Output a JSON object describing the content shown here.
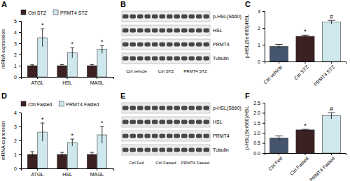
{
  "chart_data": [
    {
      "type": "bar",
      "title": "A",
      "y_label": "mRNA expression",
      "categories": [
        "ATGL",
        "HSL",
        "MAGL"
      ],
      "series": [
        {
          "name": "Ctrl STZ",
          "color": "#3b2121",
          "values": [
            1,
            1,
            1
          ],
          "errors": [
            0.08,
            0.1,
            0.1
          ]
        },
        {
          "name": "PRMT4 STZ",
          "color": "#cfe8ed",
          "values": [
            3.5,
            2.15,
            2.45
          ],
          "errors": [
            0.8,
            0.45,
            0.35
          ],
          "annotations": [
            "*",
            "*",
            "*"
          ]
        }
      ],
      "ylim": [
        0,
        5
      ],
      "yticks": [
        0,
        1,
        2,
        3,
        4,
        5
      ],
      "legend": "top"
    },
    {
      "type": "blot",
      "title": "B",
      "rows": [
        "p-HSL(S660)",
        "HSL",
        "PRMT4",
        "Tubulin"
      ],
      "lanes": [
        "Ctrl vehicle",
        "Ctrl STZ",
        "PRMT4 STZ"
      ]
    },
    {
      "type": "bar",
      "title": "C",
      "y_label": "p-HSL(Ser660)/HSL",
      "categories": [
        "Ctrl vehicle",
        "Ctrl STZ",
        "PRMT4 STZ"
      ],
      "values": [
        0.9,
        1.5,
        2.35
      ],
      "errors": [
        0.12,
        0.07,
        0.1
      ],
      "annotations": [
        null,
        "*",
        "#"
      ],
      "colors": [
        "#45556e",
        "#3b2121",
        "#cfe8ed"
      ],
      "ylim": [
        0,
        3
      ],
      "yticks": [
        0,
        1,
        2,
        3
      ]
    },
    {
      "type": "bar",
      "title": "D",
      "y_label": "mRNA expression",
      "categories": [
        "ATGL",
        "HSL",
        "MAGL"
      ],
      "series": [
        {
          "name": "Ctrl Fasted",
          "color": "#3b2121",
          "values": [
            1,
            1,
            1
          ],
          "errors": [
            0.2,
            0.15,
            0.15
          ]
        },
        {
          "name": "PRMT4 Fasted",
          "color": "#cfe8ed",
          "values": [
            2.6,
            1.85,
            2.4
          ],
          "errors": [
            0.65,
            0.25,
            0.6
          ],
          "annotations": [
            "*",
            "*",
            "*"
          ]
        }
      ],
      "ylim": [
        0,
        4
      ],
      "yticks": [
        0,
        1,
        2,
        3,
        4
      ],
      "legend": "top"
    },
    {
      "type": "blot",
      "title": "E",
      "rows": [
        "p-HSL(S660)",
        "HSL",
        "PRMT4",
        "Tubulin"
      ],
      "lanes": [
        "Ctrl Fed",
        "Ctrl Fasted",
        "PRMT4 Fasted"
      ]
    },
    {
      "type": "bar",
      "title": "F",
      "y_label": "p-HSL(Ser660)/HSL",
      "categories": [
        "Ctrl Fed",
        "Ctrl Fasted",
        "PRMT4 Fasted"
      ],
      "values": [
        0.75,
        1.15,
        1.85
      ],
      "errors": [
        0.1,
        0.03,
        0.15
      ],
      "annotations": [
        null,
        "*",
        "#"
      ],
      "colors": [
        "#45556e",
        "#3b2121",
        "#cfe8ed"
      ],
      "ylim": [
        0,
        2.5
      ],
      "yticks": [
        {
          "value": 0,
          "label": "0.0"
        },
        0.5,
        {
          "value": 1,
          "label": "1.0"
        },
        1.5,
        {
          "value": 2,
          "label": "2.0"
        },
        2.5
      ]
    }
  ]
}
